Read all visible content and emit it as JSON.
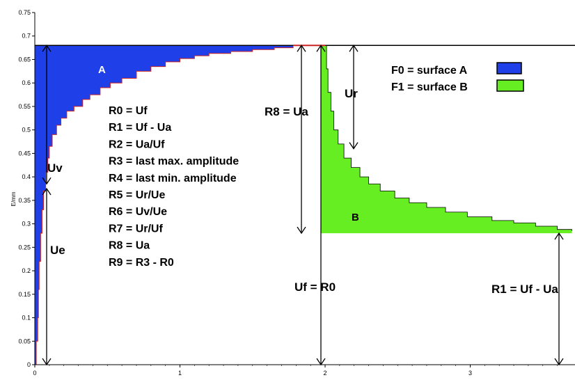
{
  "chart_data": {
    "type": "area",
    "ylabel": "E/mm",
    "xlim": [
      0,
      3.7
    ],
    "ylim": [
      0,
      0.75
    ],
    "x_ticks": [
      "0",
      "1",
      "2",
      "3"
    ],
    "y_ticks": [
      "0",
      "0.05",
      "0.1",
      "0.15",
      "0.2",
      "0.25",
      "0.3",
      "0.35",
      "0.4",
      "0.45",
      "0.5",
      "0.55",
      "0.6",
      "0.65",
      "0.7",
      "0.75"
    ],
    "colors": {
      "surface_a": "#1f3fe8",
      "surface_b": "#66ee22",
      "curve": "#cc2222"
    },
    "loading_curve": [
      [
        0.0,
        0.0
      ],
      [
        0.01,
        0.05
      ],
      [
        0.02,
        0.1
      ],
      [
        0.025,
        0.16
      ],
      [
        0.03,
        0.22
      ],
      [
        0.04,
        0.28
      ],
      [
        0.05,
        0.33
      ],
      [
        0.06,
        0.37
      ],
      [
        0.075,
        0.41
      ],
      [
        0.09,
        0.44
      ],
      [
        0.1,
        0.465
      ],
      [
        0.12,
        0.49
      ],
      [
        0.15,
        0.51
      ],
      [
        0.18,
        0.525
      ],
      [
        0.22,
        0.54
      ],
      [
        0.27,
        0.55
      ],
      [
        0.33,
        0.565
      ],
      [
        0.38,
        0.575
      ],
      [
        0.45,
        0.59
      ],
      [
        0.52,
        0.6
      ],
      [
        0.6,
        0.61
      ],
      [
        0.7,
        0.625
      ],
      [
        0.8,
        0.635
      ],
      [
        0.9,
        0.645
      ],
      [
        1.0,
        0.652
      ],
      [
        1.1,
        0.658
      ],
      [
        1.2,
        0.663
      ],
      [
        1.35,
        0.667
      ],
      [
        1.5,
        0.671
      ],
      [
        1.65,
        0.675
      ],
      [
        1.78,
        0.678
      ]
    ],
    "relaxation_curve": [
      [
        2.0,
        0.68
      ],
      [
        2.01,
        0.63
      ],
      [
        2.02,
        0.58
      ],
      [
        2.04,
        0.54
      ],
      [
        2.06,
        0.5
      ],
      [
        2.09,
        0.47
      ],
      [
        2.13,
        0.44
      ],
      [
        2.18,
        0.42
      ],
      [
        2.24,
        0.4
      ],
      [
        2.3,
        0.385
      ],
      [
        2.38,
        0.37
      ],
      [
        2.48,
        0.355
      ],
      [
        2.58,
        0.345
      ],
      [
        2.7,
        0.335
      ],
      [
        2.83,
        0.325
      ],
      [
        2.98,
        0.315
      ],
      [
        3.15,
        0.307
      ],
      [
        3.3,
        0.302
      ],
      [
        3.45,
        0.295
      ],
      [
        3.6,
        0.288
      ],
      [
        3.7,
        0.285
      ]
    ],
    "max_level": 0.68,
    "min_level": 0.28,
    "annotations": {
      "formulas": [
        "R0 = Uf",
        "R1 = Uf - Ua",
        "R2 = Ua/Uf",
        "R3 = last max. amplitude",
        "R4 = last min.  amplitude",
        "R5 = Ur/Ue",
        "R6 = Uv/Ue",
        "R7 = Ur/Uf",
        "R8 = Ua",
        "R9 = R3 - R0"
      ],
      "legend": [
        {
          "label": "F0 = surface A"
        },
        {
          "label": "F1 = surface B"
        }
      ],
      "region_a": "A",
      "region_b": "B",
      "uv": "Uv",
      "ue": "Ue",
      "ur": "Ur",
      "r8": "R8 = Ua",
      "uf": "Uf = R0",
      "r1": "R1 = Uf - Ua"
    }
  }
}
